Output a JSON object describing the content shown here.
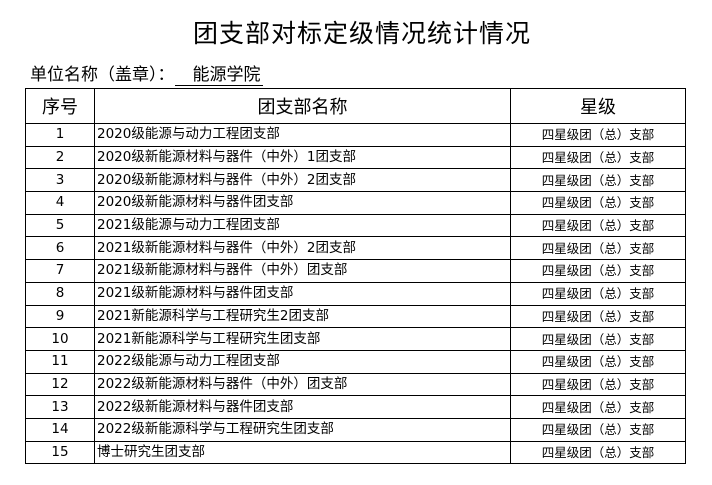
{
  "title": "团支部对标定级情况统计情况",
  "unit_label": "单位名称（盖章）：",
  "unit_value": "能源学院",
  "table": {
    "headers": [
      "序号",
      "团支部名称",
      "星级"
    ],
    "rows": [
      [
        "1",
        "2020级能源与动力工程团支部",
        "四星级团（总）支部"
      ],
      [
        "2",
        "2020级新能源材料与器件（中外）1团支部",
        "四星级团（总）支部"
      ],
      [
        "3",
        "2020级新能源材料与器件（中外）2团支部",
        "四星级团（总）支部"
      ],
      [
        "4",
        "2020级新能源材料与器件团支部",
        "四星级团（总）支部"
      ],
      [
        "5",
        "2021级能源与动力工程团支部",
        "四星级团（总）支部"
      ],
      [
        "6",
        "2021级新能源材料与器件（中外）2团支部",
        "四星级团（总）支部"
      ],
      [
        "7",
        "2021级新能源材料与器件（中外）团支部",
        "四星级团（总）支部"
      ],
      [
        "8",
        "2021级新能源材料与器件团支部",
        "四星级团（总）支部"
      ],
      [
        "9",
        "2021新能源科学与工程研究生2团支部",
        "四星级团（总）支部"
      ],
      [
        "10",
        "2021新能源科学与工程研究生团支部",
        "四星级团（总）支部"
      ],
      [
        "11",
        "2022级能源与动力工程团支部",
        "四星级团（总）支部"
      ],
      [
        "12",
        "2022级新能源材料与器件（中外）团支部",
        "四星级团（总）支部"
      ],
      [
        "13",
        "2022级新能源材料与器件团支部",
        "四星级团（总）支部"
      ],
      [
        "14",
        "2022级新能源科学与工程研究生团支部",
        "四星级团（总）支部"
      ],
      [
        "15",
        "博士研究生团支部",
        "四星级团（总）支部"
      ]
    ]
  }
}
